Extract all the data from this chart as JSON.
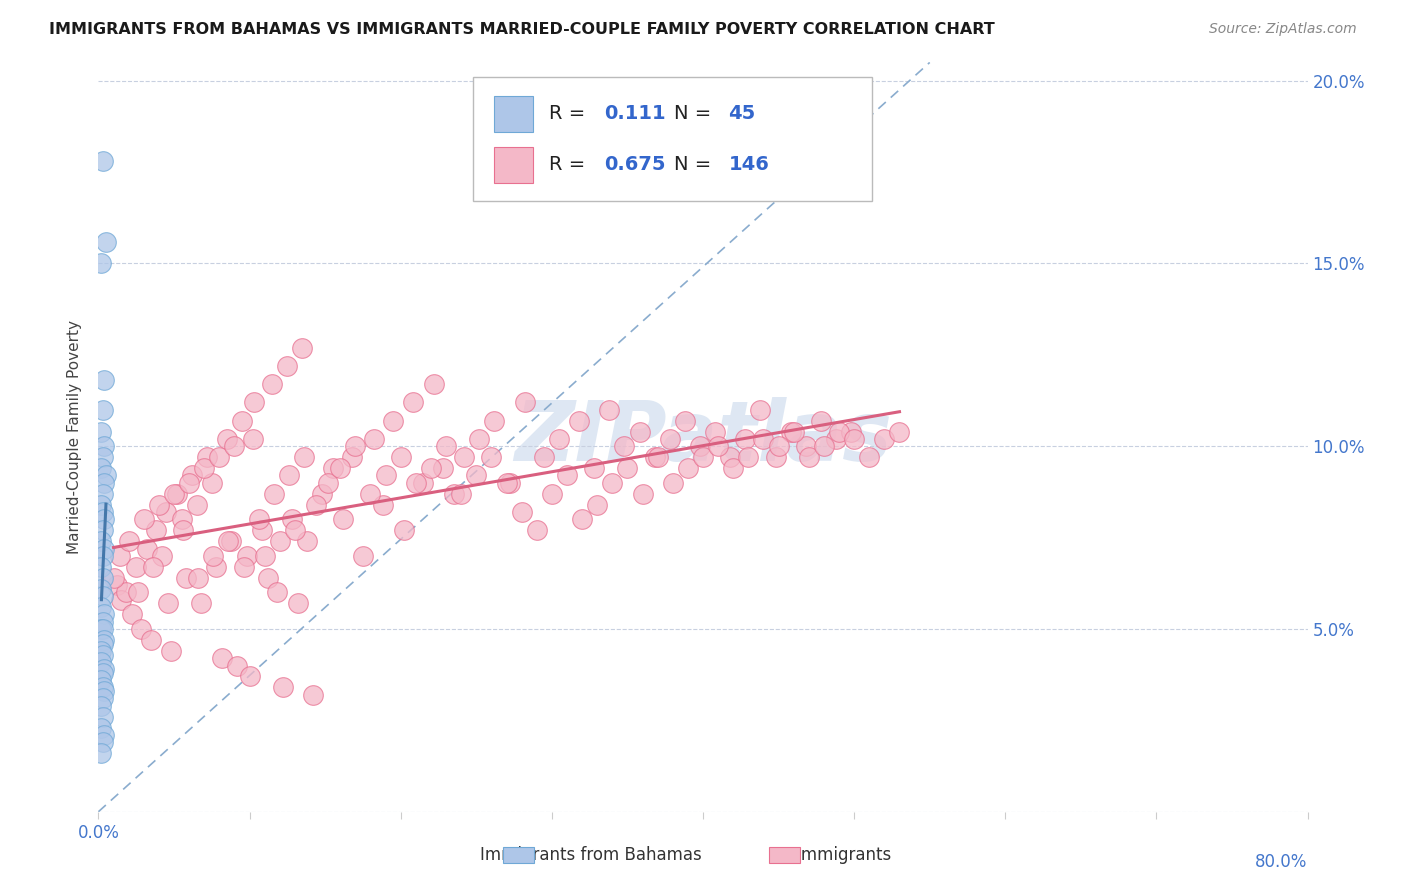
{
  "title": "IMMIGRANTS FROM BAHAMAS VS IMMIGRANTS MARRIED-COUPLE FAMILY POVERTY CORRELATION CHART",
  "source": "Source: ZipAtlas.com",
  "ylabel": "Married-Couple Family Poverty",
  "xlim": [
    0.0,
    0.8
  ],
  "ylim": [
    0.0,
    0.205
  ],
  "x_ticks": [
    0.0,
    0.1,
    0.2,
    0.3,
    0.4,
    0.5,
    0.6,
    0.7,
    0.8
  ],
  "y_ticks": [
    0.0,
    0.05,
    0.1,
    0.15,
    0.2
  ],
  "legend_blue_R": "0.111",
  "legend_blue_N": "45",
  "legend_pink_R": "0.675",
  "legend_pink_N": "146",
  "blue_fill": "#aec6e8",
  "blue_edge": "#6fa8d6",
  "pink_fill": "#f4b8c8",
  "pink_edge": "#e87090",
  "blue_line_color": "#4477aa",
  "pink_line_color": "#d95f7f",
  "diag_line_color": "#8aacce",
  "watermark_color": "#c8d8ec",
  "background_color": "#ffffff",
  "blue_scatter_x": [
    0.003,
    0.005,
    0.002,
    0.004,
    0.003,
    0.002,
    0.004,
    0.003,
    0.002,
    0.005,
    0.004,
    0.003,
    0.002,
    0.003,
    0.004,
    0.003,
    0.002,
    0.004,
    0.003,
    0.002,
    0.003,
    0.002,
    0.003,
    0.002,
    0.004,
    0.003,
    0.002,
    0.003,
    0.004,
    0.003,
    0.002,
    0.003,
    0.002,
    0.004,
    0.003,
    0.002,
    0.003,
    0.004,
    0.003,
    0.002,
    0.003,
    0.002,
    0.004,
    0.003,
    0.002
  ],
  "blue_scatter_y": [
    0.178,
    0.156,
    0.15,
    0.118,
    0.11,
    0.104,
    0.1,
    0.097,
    0.094,
    0.092,
    0.09,
    0.087,
    0.084,
    0.082,
    0.08,
    0.077,
    0.074,
    0.072,
    0.07,
    0.067,
    0.064,
    0.061,
    0.059,
    0.056,
    0.054,
    0.052,
    0.05,
    0.05,
    0.047,
    0.046,
    0.044,
    0.043,
    0.041,
    0.039,
    0.038,
    0.036,
    0.034,
    0.033,
    0.031,
    0.029,
    0.026,
    0.023,
    0.021,
    0.019,
    0.016
  ],
  "pink_scatter_x": [
    0.012,
    0.015,
    0.018,
    0.022,
    0.025,
    0.028,
    0.032,
    0.035,
    0.038,
    0.042,
    0.045,
    0.048,
    0.052,
    0.055,
    0.058,
    0.062,
    0.065,
    0.068,
    0.072,
    0.075,
    0.078,
    0.082,
    0.085,
    0.088,
    0.092,
    0.095,
    0.098,
    0.1,
    0.103,
    0.108,
    0.112,
    0.115,
    0.118,
    0.122,
    0.125,
    0.128,
    0.132,
    0.135,
    0.138,
    0.142,
    0.148,
    0.155,
    0.162,
    0.168,
    0.175,
    0.182,
    0.188,
    0.195,
    0.202,
    0.208,
    0.215,
    0.222,
    0.228,
    0.235,
    0.242,
    0.252,
    0.262,
    0.272,
    0.282,
    0.295,
    0.305,
    0.318,
    0.328,
    0.338,
    0.348,
    0.358,
    0.368,
    0.378,
    0.388,
    0.398,
    0.408,
    0.418,
    0.428,
    0.438,
    0.448,
    0.458,
    0.468,
    0.478,
    0.488,
    0.498,
    0.01,
    0.014,
    0.02,
    0.026,
    0.03,
    0.036,
    0.04,
    0.046,
    0.05,
    0.056,
    0.06,
    0.066,
    0.07,
    0.076,
    0.08,
    0.086,
    0.09,
    0.096,
    0.102,
    0.106,
    0.11,
    0.116,
    0.12,
    0.126,
    0.13,
    0.136,
    0.144,
    0.152,
    0.16,
    0.17,
    0.18,
    0.19,
    0.2,
    0.21,
    0.22,
    0.23,
    0.24,
    0.25,
    0.26,
    0.27,
    0.28,
    0.29,
    0.3,
    0.31,
    0.32,
    0.33,
    0.34,
    0.35,
    0.36,
    0.37,
    0.38,
    0.39,
    0.4,
    0.41,
    0.42,
    0.43,
    0.44,
    0.45,
    0.46,
    0.47,
    0.48,
    0.49,
    0.5,
    0.51,
    0.52,
    0.53
  ],
  "pink_scatter_y": [
    0.062,
    0.058,
    0.06,
    0.054,
    0.067,
    0.05,
    0.072,
    0.047,
    0.077,
    0.07,
    0.082,
    0.044,
    0.087,
    0.08,
    0.064,
    0.092,
    0.084,
    0.057,
    0.097,
    0.09,
    0.067,
    0.042,
    0.102,
    0.074,
    0.04,
    0.107,
    0.07,
    0.037,
    0.112,
    0.077,
    0.064,
    0.117,
    0.06,
    0.034,
    0.122,
    0.08,
    0.057,
    0.127,
    0.074,
    0.032,
    0.087,
    0.094,
    0.08,
    0.097,
    0.07,
    0.102,
    0.084,
    0.107,
    0.077,
    0.112,
    0.09,
    0.117,
    0.094,
    0.087,
    0.097,
    0.102,
    0.107,
    0.09,
    0.112,
    0.097,
    0.102,
    0.107,
    0.094,
    0.11,
    0.1,
    0.104,
    0.097,
    0.102,
    0.107,
    0.1,
    0.104,
    0.097,
    0.102,
    0.11,
    0.097,
    0.104,
    0.1,
    0.107,
    0.102,
    0.104,
    0.064,
    0.07,
    0.074,
    0.06,
    0.08,
    0.067,
    0.084,
    0.057,
    0.087,
    0.077,
    0.09,
    0.064,
    0.094,
    0.07,
    0.097,
    0.074,
    0.1,
    0.067,
    0.102,
    0.08,
    0.07,
    0.087,
    0.074,
    0.092,
    0.077,
    0.097,
    0.084,
    0.09,
    0.094,
    0.1,
    0.087,
    0.092,
    0.097,
    0.09,
    0.094,
    0.1,
    0.087,
    0.092,
    0.097,
    0.09,
    0.082,
    0.077,
    0.087,
    0.092,
    0.08,
    0.084,
    0.09,
    0.094,
    0.087,
    0.097,
    0.09,
    0.094,
    0.097,
    0.1,
    0.094,
    0.097,
    0.102,
    0.1,
    0.104,
    0.097,
    0.1,
    0.104,
    0.102,
    0.097,
    0.102,
    0.104
  ]
}
